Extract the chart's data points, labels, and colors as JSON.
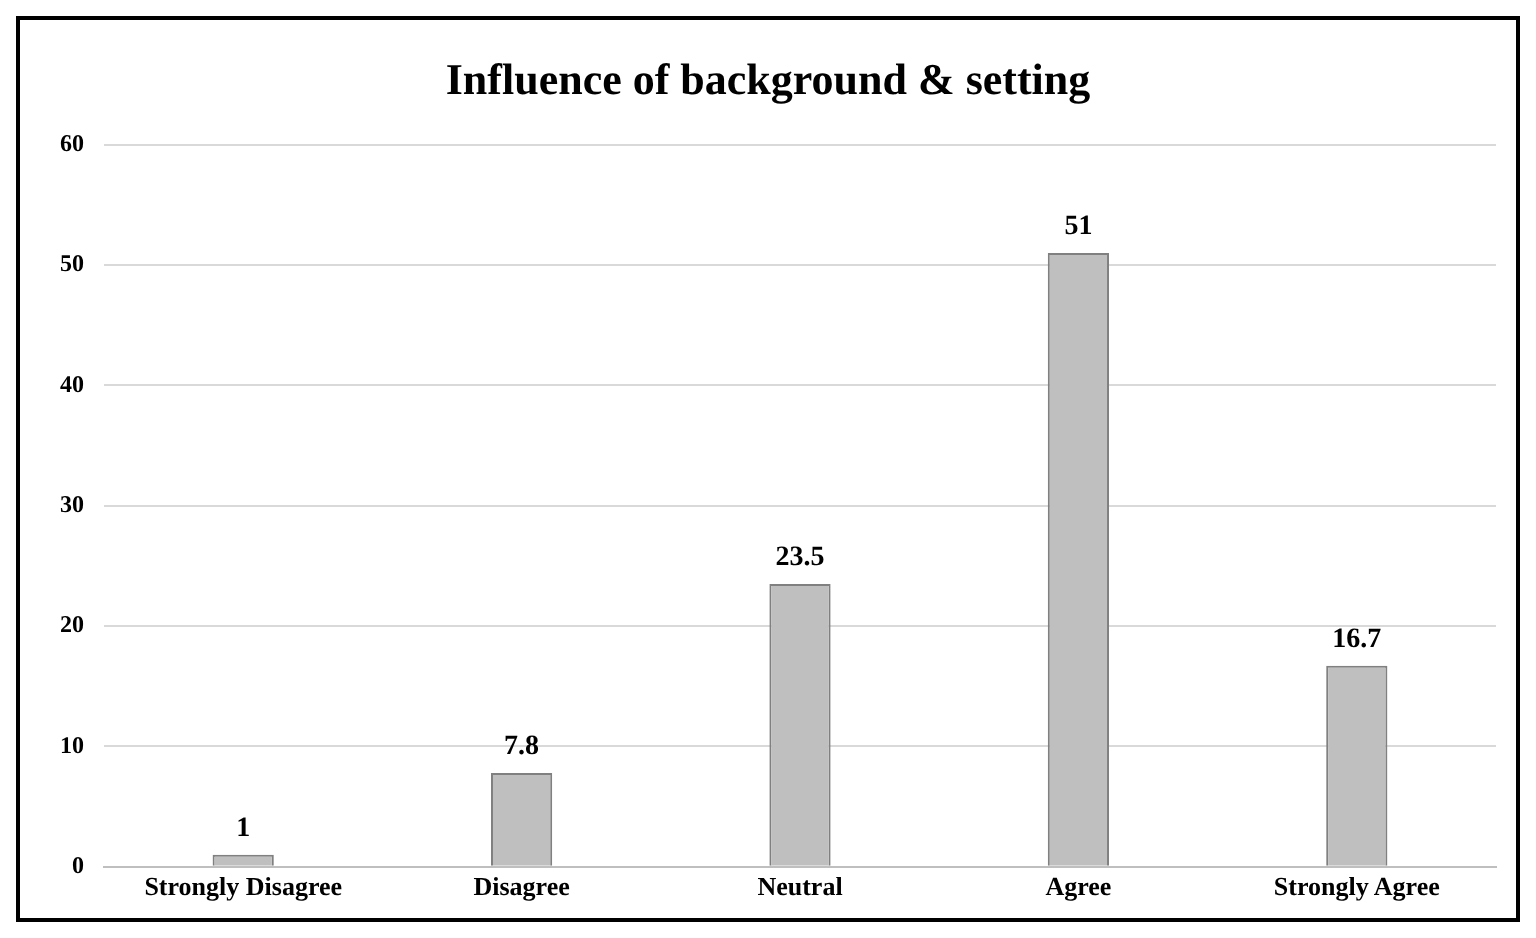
{
  "chart_data": {
    "type": "bar",
    "title": "Influence of background & setting",
    "categories": [
      "Strongly Disagree",
      "Disagree",
      "Neutral",
      "Agree",
      "Strongly Agree"
    ],
    "values": [
      1,
      7.8,
      23.5,
      51,
      16.7
    ],
    "color": "#bfbfbf",
    "ylim": [
      0,
      60
    ],
    "yticks": [
      0,
      10,
      20,
      30,
      40,
      50,
      60
    ],
    "grid": "y",
    "data_labels": true,
    "legend": false
  }
}
